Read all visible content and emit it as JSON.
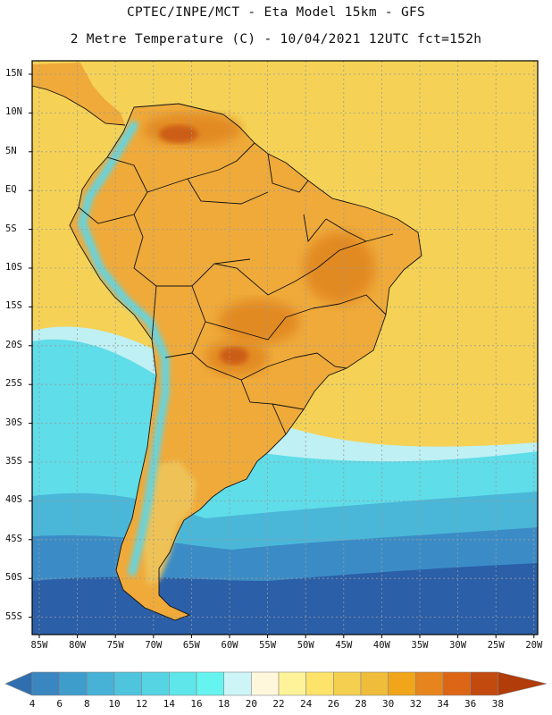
{
  "header": {
    "line1": "CPTEC/INPE/MCT -  Eta Model 15km - GFS",
    "line2": "2 Metre Temperature (C) - 10/04/2021 12UTC fct=152h"
  },
  "lat_labels": [
    "15N",
    "10N",
    "5N",
    "EQ",
    "5S",
    "10S",
    "15S",
    "20S",
    "25S",
    "30S",
    "35S",
    "40S",
    "45S",
    "50S",
    "55S"
  ],
  "lon_labels": [
    "85W",
    "80W",
    "75W",
    "70W",
    "65W",
    "60W",
    "55W",
    "50W",
    "45W",
    "40W",
    "35W",
    "30W",
    "25W",
    "20W"
  ],
  "colorbar": {
    "labels": [
      "4",
      "6",
      "8",
      "10",
      "12",
      "14",
      "16",
      "18",
      "20",
      "22",
      "24",
      "26",
      "28",
      "30",
      "32",
      "34",
      "36",
      "38"
    ],
    "colors": [
      "#2f6fb0",
      "#3a86c0",
      "#3f9dcc",
      "#47b1d6",
      "#4fc4dd",
      "#57d4e3",
      "#5ee6ea",
      "#66f4f0",
      "#cdf5f7",
      "#fff7dc",
      "#fff39a",
      "#fde36a",
      "#f5cf4f",
      "#efbd3a",
      "#f0a51a",
      "#e6851d",
      "#dc6615",
      "#c24a0e",
      "#b23c0a"
    ]
  },
  "map_colors": {
    "sea_far_south": "#2b5fa8",
    "sea_south": "#3b8cc6",
    "sea_mid": "#4ab7d8",
    "sea_cyan": "#5fdde9",
    "sea_light": "#bff0f3",
    "sea_warm": "#f5d256",
    "sea_warmer": "#f0c74a",
    "land_base": "#efaa3a",
    "land_hot": "#e28a23",
    "land_hottest": "#cc5d16",
    "andes": "#60d6e6",
    "patagonia": "#eec257",
    "border": "#111111",
    "grid": "#9a9a9a",
    "frame": "#000000"
  }
}
